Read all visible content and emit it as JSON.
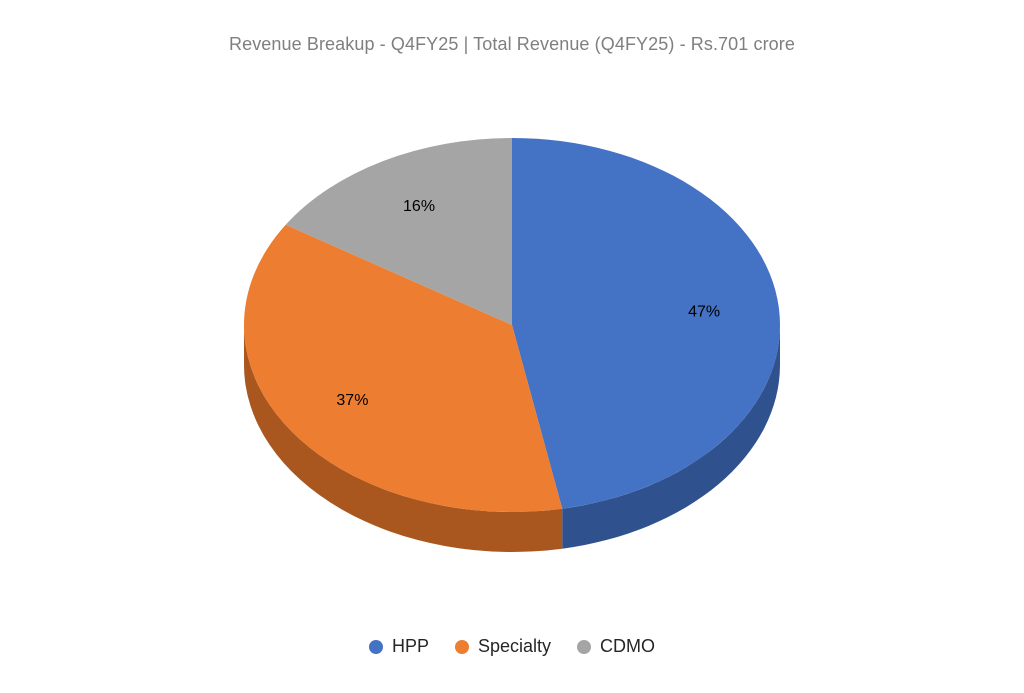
{
  "chart_data": {
    "type": "pie",
    "title": "Revenue Breakup - Q4FY25 | Total Revenue (Q4FY25) - Rs.701 crore",
    "slices": [
      {
        "name": "HPP",
        "value": 47,
        "label": "47%",
        "color": "#4472C4",
        "side_color": "#2F528F"
      },
      {
        "name": "Specialty",
        "value": 37,
        "label": "37%",
        "color": "#ED7D31",
        "side_color": "#A9571F"
      },
      {
        "name": "CDMO",
        "value": 16,
        "label": "16%",
        "color": "#A5A5A5",
        "side_color": "#7B7B7B"
      }
    ],
    "legend_position": "bottom"
  }
}
